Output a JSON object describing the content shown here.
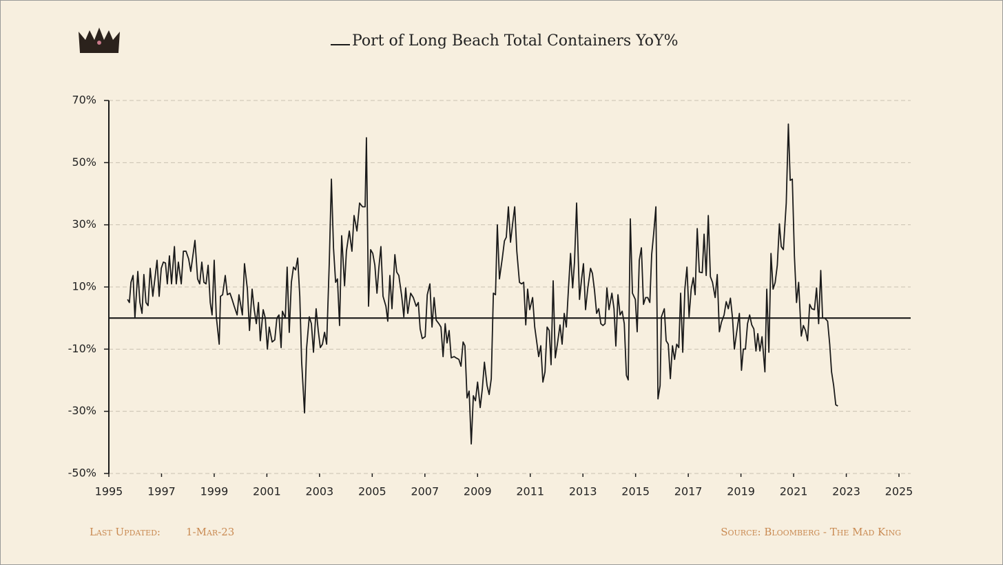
{
  "chart_data": {
    "type": "line",
    "title": "Port of Long Beach Total Containers YoY%",
    "footer_left_label": "Last Updated:",
    "footer_left_date": "1-Mar-23",
    "footer_right": "Source: Bloomberg - The Mad King",
    "xlim": [
      1995,
      2025
    ],
    "xticks": [
      1995,
      1997,
      1999,
      2001,
      2003,
      2005,
      2007,
      2009,
      2011,
      2013,
      2015,
      2017,
      2019,
      2021,
      2023,
      2025
    ],
    "ylim": [
      -50,
      70
    ],
    "yticks": [
      {
        "value": -50,
        "label": "-50%"
      },
      {
        "value": -30,
        "label": "-30%"
      },
      {
        "value": -10,
        "label": "-10%"
      },
      {
        "value": 10,
        "label": "10%"
      },
      {
        "value": 30,
        "label": "30%"
      },
      {
        "value": 50,
        "label": "50%"
      },
      {
        "value": 70,
        "label": "70%"
      }
    ],
    "grid": true,
    "series": [
      {
        "name": "Port of Long Beach Total Containers YoY%",
        "color": "#1a1a1a",
        "x": [
          1995.71,
          1995.78,
          1995.84,
          1995.92,
          1995.99,
          1996.1,
          1996.18,
          1996.26,
          1996.33,
          1996.41,
          1996.49,
          1996.57,
          1996.67,
          1996.83,
          1996.91,
          1996.99,
          1997.07,
          1997.15,
          1997.22,
          1997.3,
          1997.38,
          1997.49,
          1997.56,
          1997.64,
          1997.75,
          1997.83,
          1997.93,
          1998.03,
          1998.11,
          1998.27,
          1998.37,
          1998.45,
          1998.53,
          1998.61,
          1998.69,
          1998.77,
          1998.85,
          1998.92,
          1999.0,
          1999.08,
          1999.19,
          1999.24,
          1999.32,
          1999.42,
          1999.5,
          1999.6,
          1999.68,
          1999.76,
          1999.87,
          1999.94,
          2000.07,
          2000.15,
          2000.26,
          2000.34,
          2000.44,
          2000.52,
          2000.6,
          2000.68,
          2000.75,
          2000.86,
          2000.94,
          2001.02,
          2001.09,
          2001.2,
          2001.3,
          2001.38,
          2001.46,
          2001.54,
          2001.59,
          2001.7,
          2001.77,
          2001.85,
          2001.93,
          2002.01,
          2002.09,
          2002.17,
          2002.25,
          2002.32,
          2002.43,
          2002.51,
          2002.61,
          2002.69,
          2002.77,
          2002.87,
          2002.95,
          2003.03,
          2003.11,
          2003.19,
          2003.27,
          2003.37,
          2003.45,
          2003.53,
          2003.61,
          2003.68,
          2003.76,
          2003.84,
          2003.95,
          2004.02,
          2004.13,
          2004.23,
          2004.31,
          2004.42,
          2004.52,
          2004.63,
          2004.73,
          2004.78,
          2004.86,
          2004.94,
          2005.02,
          2005.1,
          2005.18,
          2005.25,
          2005.33,
          2005.41,
          2005.52,
          2005.59,
          2005.67,
          2005.75,
          2005.86,
          2005.93,
          2006.01,
          2006.12,
          2006.2,
          2006.27,
          2006.35,
          2006.46,
          2006.56,
          2006.67,
          2006.75,
          2006.82,
          2006.9,
          2007.01,
          2007.09,
          2007.19,
          2007.27,
          2007.35,
          2007.43,
          2007.53,
          2007.61,
          2007.69,
          2007.77,
          2007.84,
          2007.92,
          2008.0,
          2008.11,
          2008.18,
          2008.29,
          2008.37,
          2008.45,
          2008.52,
          2008.6,
          2008.68,
          2008.76,
          2008.84,
          2008.92,
          2009.0,
          2009.1,
          2009.18,
          2009.26,
          2009.36,
          2009.44,
          2009.52,
          2009.6,
          2009.68,
          2009.75,
          2009.83,
          2009.94,
          2010.02,
          2010.09,
          2010.17,
          2010.25,
          2010.33,
          2010.41,
          2010.49,
          2010.59,
          2010.67,
          2010.75,
          2010.83,
          2010.9,
          2010.98,
          2011.09,
          2011.17,
          2011.24,
          2011.32,
          2011.4,
          2011.48,
          2011.56,
          2011.64,
          2011.72,
          2011.79,
          2011.87,
          2011.95,
          2012.03,
          2012.13,
          2012.21,
          2012.29,
          2012.37,
          2012.45,
          2012.53,
          2012.61,
          2012.68,
          2012.76,
          2012.87,
          2012.95,
          2013.02,
          2013.1,
          2013.18,
          2013.29,
          2013.36,
          2013.44,
          2013.52,
          2013.6,
          2013.68,
          2013.76,
          2013.84,
          2013.91,
          2013.99,
          2014.1,
          2014.18,
          2014.25,
          2014.33,
          2014.41,
          2014.49,
          2014.57,
          2014.65,
          2014.72,
          2014.8,
          2014.88,
          2014.99,
          2015.06,
          2015.14,
          2015.22,
          2015.3,
          2015.38,
          2015.46,
          2015.54,
          2015.61,
          2015.69,
          2015.77,
          2015.85,
          2015.93,
          2015.98,
          2016.09,
          2016.16,
          2016.24,
          2016.32,
          2016.4,
          2016.48,
          2016.56,
          2016.64,
          2016.71,
          2016.79,
          2016.87,
          2016.95,
          2017.03,
          2017.11,
          2017.19,
          2017.26,
          2017.34,
          2017.42,
          2017.53,
          2017.6,
          2017.68,
          2017.76,
          2017.84,
          2017.92,
          2018.02,
          2018.1,
          2018.18,
          2018.26,
          2018.36,
          2018.44,
          2018.52,
          2018.6,
          2018.68,
          2018.75,
          2018.83,
          2018.94,
          2019.02,
          2019.09,
          2019.17,
          2019.25,
          2019.33,
          2019.41,
          2019.49,
          2019.57,
          2019.64,
          2019.72,
          2019.8,
          2019.91,
          2019.98,
          2020.06,
          2020.14,
          2020.22,
          2020.3,
          2020.38,
          2020.46,
          2020.53,
          2020.61,
          2020.72,
          2020.8,
          2020.87,
          2020.95,
          2021.03,
          2021.11,
          2021.19,
          2021.29,
          2021.37,
          2021.45,
          2021.53,
          2021.61,
          2021.69,
          2021.79,
          2021.87,
          2021.95,
          2022.03,
          2022.1,
          2022.18,
          2022.29,
          2022.37,
          2022.44,
          2022.52,
          2022.6,
          2022.68
        ],
        "values": [
          6,
          5,
          11.5,
          13.7,
          0,
          15,
          5,
          1.5,
          14,
          5,
          4,
          16,
          7,
          18.6,
          7,
          16,
          18,
          17.7,
          11,
          20,
          11,
          23,
          11,
          18,
          11,
          21.5,
          21.5,
          19,
          15,
          25,
          12.6,
          11,
          18,
          11.5,
          11,
          17,
          5,
          1,
          18.6,
          0.5,
          -8.4,
          7,
          7.5,
          13.7,
          7.5,
          8,
          6,
          3.8,
          1,
          7.5,
          1,
          17.5,
          9.3,
          -4,
          9.3,
          2.7,
          -1.8,
          5,
          -7.3,
          2.7,
          0,
          -10,
          -2.9,
          -7.7,
          -7,
          0,
          1,
          -9.5,
          2.2,
          0,
          16.4,
          -4.6,
          11.5,
          16.4,
          15.5,
          19.3,
          7,
          -14,
          -30.5,
          -9.5,
          0.4,
          -1.8,
          -11,
          3,
          -4,
          -9.5,
          -8.4,
          -4.6,
          -8.4,
          18,
          44.7,
          22.6,
          11.5,
          12.6,
          -2.4,
          26.5,
          10.4,
          21.5,
          28,
          21.5,
          33,
          28,
          37,
          35.8,
          35.8,
          58,
          3.8,
          22,
          20.8,
          17,
          8,
          16,
          23,
          7,
          3.8,
          -1,
          13.7,
          3,
          20.4,
          14.8,
          13.7,
          7,
          0.4,
          9.7,
          1.5,
          8,
          6.6,
          3.8,
          5,
          -3.5,
          -6.6,
          -6,
          7.5,
          11,
          -2.9,
          6.6,
          -0.7,
          -1.8,
          -2.9,
          -12.4,
          -1.8,
          -8,
          -4,
          -12.8,
          -12.4,
          -12.8,
          -13.3,
          -15.5,
          -7.7,
          -8.9,
          -25.7,
          -23.5,
          -40.5,
          -25,
          -26.6,
          -20.6,
          -28.8,
          -22.8,
          -14.2,
          -21.7,
          -24.6,
          -19.5,
          8,
          7.5,
          30,
          12.6,
          19.3,
          24.8,
          26,
          35.8,
          24.4,
          30.3,
          35.8,
          21.5,
          11.5,
          11,
          11.5,
          -2.2,
          9.3,
          2.7,
          6.6,
          -2.9,
          -7.3,
          -12.4,
          -8.9,
          -20.6,
          -17.3,
          -2.9,
          -4,
          -15,
          12,
          -12.8,
          -8.4,
          -2.2,
          -8.4,
          1.5,
          -2.9,
          9.3,
          20.8,
          9.7,
          18,
          37,
          6,
          12.6,
          17.5,
          2.7,
          9.3,
          16,
          14.4,
          8.9,
          1.5,
          3,
          -1.8,
          -2.4,
          -1.8,
          9.7,
          2.7,
          8,
          3,
          -9,
          7.5,
          1,
          2.2,
          -1.8,
          -18.4,
          -19.9,
          31.9,
          8,
          6,
          -4.4,
          18.6,
          22.6,
          4.4,
          6.6,
          6.6,
          5,
          20.4,
          27.5,
          35.8,
          -26,
          -21.7,
          0.4,
          3,
          -7.3,
          -8.4,
          -19.5,
          -8.9,
          -13.3,
          -8.4,
          -9.5,
          8,
          -11,
          9.3,
          16.4,
          0.4,
          9.3,
          13,
          7.5,
          28.8,
          14.8,
          14.6,
          27,
          13.7,
          33,
          13.3,
          11.5,
          6.6,
          14,
          -4.4,
          -1.3,
          1,
          5.3,
          3,
          6.4,
          0,
          -10,
          -5,
          1.5,
          -16.8,
          -10,
          -10,
          -1.8,
          1,
          -2.2,
          -3.5,
          -10.6,
          -5,
          -10.6,
          -6,
          -17.3,
          9.3,
          -11,
          20.8,
          9.3,
          11.5,
          17,
          30.3,
          23,
          22,
          37,
          62.4,
          44.3,
          44.7,
          20,
          5,
          11.5,
          -5.8,
          -2.4,
          -4,
          -7.3,
          4.4,
          3,
          2.7,
          9.7,
          -1.8,
          15.3,
          0,
          0,
          -1,
          -8.4,
          -17.3,
          -21.7,
          -27.9,
          -28.3
        ]
      }
    ]
  }
}
